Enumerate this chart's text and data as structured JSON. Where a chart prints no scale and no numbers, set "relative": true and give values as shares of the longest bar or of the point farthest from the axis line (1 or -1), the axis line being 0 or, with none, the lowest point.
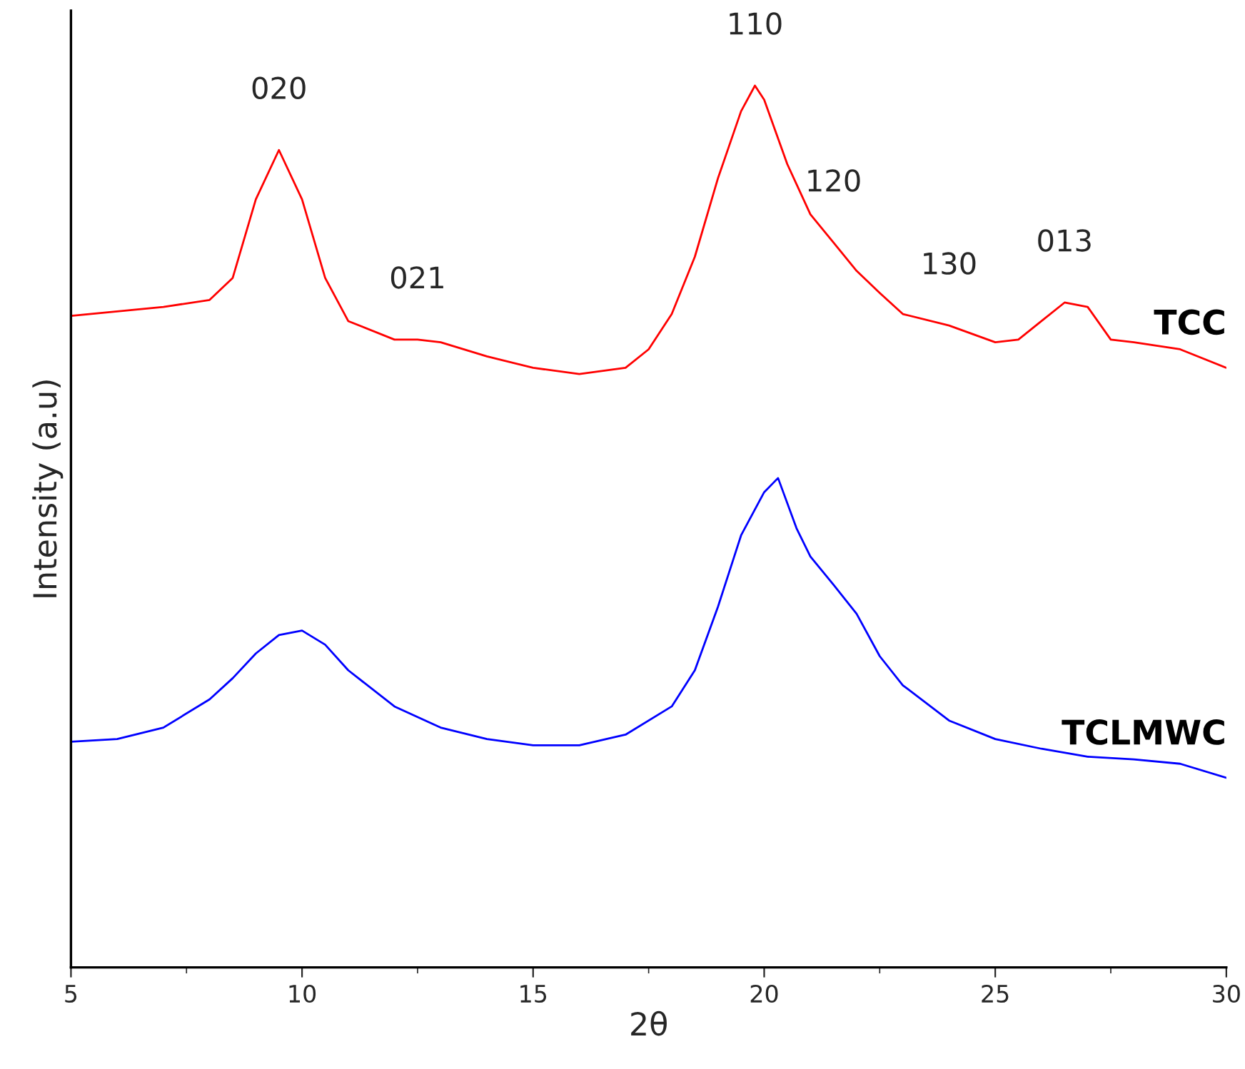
{
  "chart_data": {
    "type": "line",
    "relative": true,
    "xlabel": "2θ",
    "ylabel": "Intensity (a.u)",
    "xlim": [
      5,
      30
    ],
    "xticks": [
      5,
      10,
      15,
      20,
      25,
      30
    ],
    "grid": false,
    "legend": false,
    "marker": "none",
    "line_style": "solid",
    "series": [
      {
        "name": "TCC",
        "color": "#ff0000",
        "x": [
          5,
          6,
          7,
          8,
          8.5,
          9,
          9.5,
          10,
          10.5,
          11,
          12,
          12.5,
          13,
          14,
          15,
          16,
          17,
          17.5,
          18,
          18.5,
          19,
          19.5,
          19.8,
          20,
          20.5,
          21,
          21.5,
          22,
          22.5,
          23,
          24,
          25,
          25.5,
          26,
          26.5,
          27,
          27.5,
          28,
          29,
          30
        ],
        "values": [
          0.739,
          0.744,
          0.749,
          0.757,
          0.782,
          0.871,
          0.927,
          0.871,
          0.782,
          0.733,
          0.712,
          0.712,
          0.709,
          0.693,
          0.68,
          0.673,
          0.68,
          0.701,
          0.741,
          0.806,
          0.895,
          0.971,
          1,
          0.984,
          0.911,
          0.854,
          0.822,
          0.79,
          0.765,
          0.741,
          0.728,
          0.709,
          0.712,
          0.733,
          0.754,
          0.749,
          0.712,
          0.709,
          0.701,
          0.68
        ]
      },
      {
        "name": "TCLMWC",
        "color": "#0000ff",
        "x": [
          5,
          6,
          7,
          8,
          8.5,
          9,
          9.5,
          10,
          10.5,
          11,
          12,
          13,
          14,
          15,
          16,
          17,
          18,
          18.5,
          19,
          19.5,
          20,
          20.3,
          20.7,
          21,
          21.5,
          22,
          22.5,
          23,
          24,
          25,
          26,
          27,
          28,
          29,
          30
        ],
        "values": [
          0.256,
          0.259,
          0.272,
          0.304,
          0.328,
          0.356,
          0.377,
          0.382,
          0.366,
          0.337,
          0.296,
          0.272,
          0.259,
          0.252,
          0.252,
          0.264,
          0.296,
          0.337,
          0.409,
          0.49,
          0.539,
          0.555,
          0.498,
          0.466,
          0.434,
          0.401,
          0.353,
          0.32,
          0.28,
          0.259,
          0.248,
          0.239,
          0.236,
          0.231,
          0.215
        ]
      }
    ],
    "annotations": [
      {
        "text": "020",
        "x": 9.5,
        "y": 0.927
      },
      {
        "text": "021",
        "x": 12.5,
        "y": 0.712
      },
      {
        "text": "110",
        "x": 19.8,
        "y": 1
      },
      {
        "text": "120",
        "x": 21.5,
        "y": 0.822
      },
      {
        "text": "130",
        "x": 24,
        "y": 0.728
      },
      {
        "text": "013",
        "x": 26.5,
        "y": 0.754
      }
    ]
  }
}
